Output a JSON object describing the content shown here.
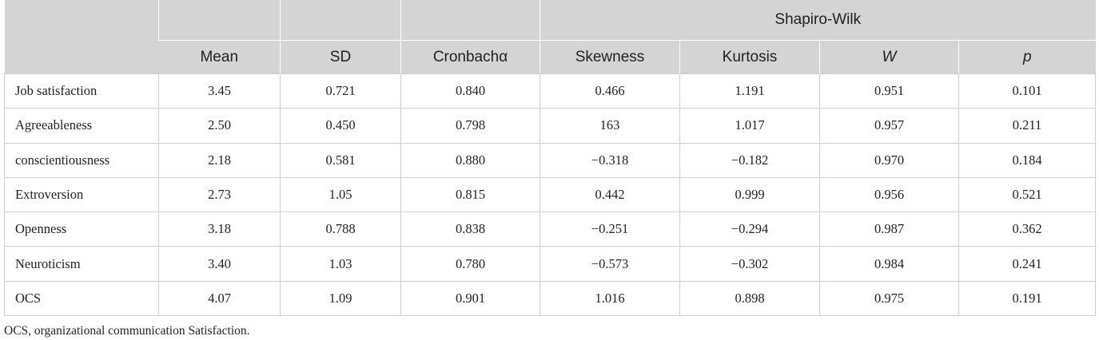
{
  "table": {
    "group_header": "Shapiro-Wilk",
    "columns": [
      "",
      "Mean",
      "SD",
      "Cronbachα",
      "Skewness",
      "Kurtosis",
      "W",
      "p"
    ],
    "rows": [
      {
        "label": "Job satisfaction",
        "values": [
          "3.45",
          "0.721",
          "0.840",
          "0.466",
          "1.191",
          "0.951",
          "0.101"
        ]
      },
      {
        "label": "Agreeableness",
        "values": [
          "2.50",
          "0.450",
          "0.798",
          "163",
          "1.017",
          "0.957",
          "0.211"
        ]
      },
      {
        "label": "conscientiousness",
        "values": [
          "2.18",
          "0.581",
          "0.880",
          "−0.318",
          "−0.182",
          "0.970",
          "0.184"
        ]
      },
      {
        "label": "Extroversion",
        "values": [
          "2.73",
          "1.05",
          "0.815",
          "0.442",
          "0.999",
          "0.956",
          "0.521"
        ]
      },
      {
        "label": "Openness",
        "values": [
          "3.18",
          "0.788",
          "0.838",
          "−0.251",
          "−0.294",
          "0.987",
          "0.362"
        ]
      },
      {
        "label": "Neuroticism",
        "values": [
          "3.40",
          "1.03",
          "0.780",
          "−0.573",
          "−0.302",
          "0.984",
          "0.241"
        ]
      },
      {
        "label": "OCS",
        "values": [
          "4.07",
          "1.09",
          "0.901",
          "1.016",
          "0.898",
          "0.975",
          "0.191"
        ]
      }
    ],
    "footnote": "OCS, organizational communication Satisfaction."
  }
}
